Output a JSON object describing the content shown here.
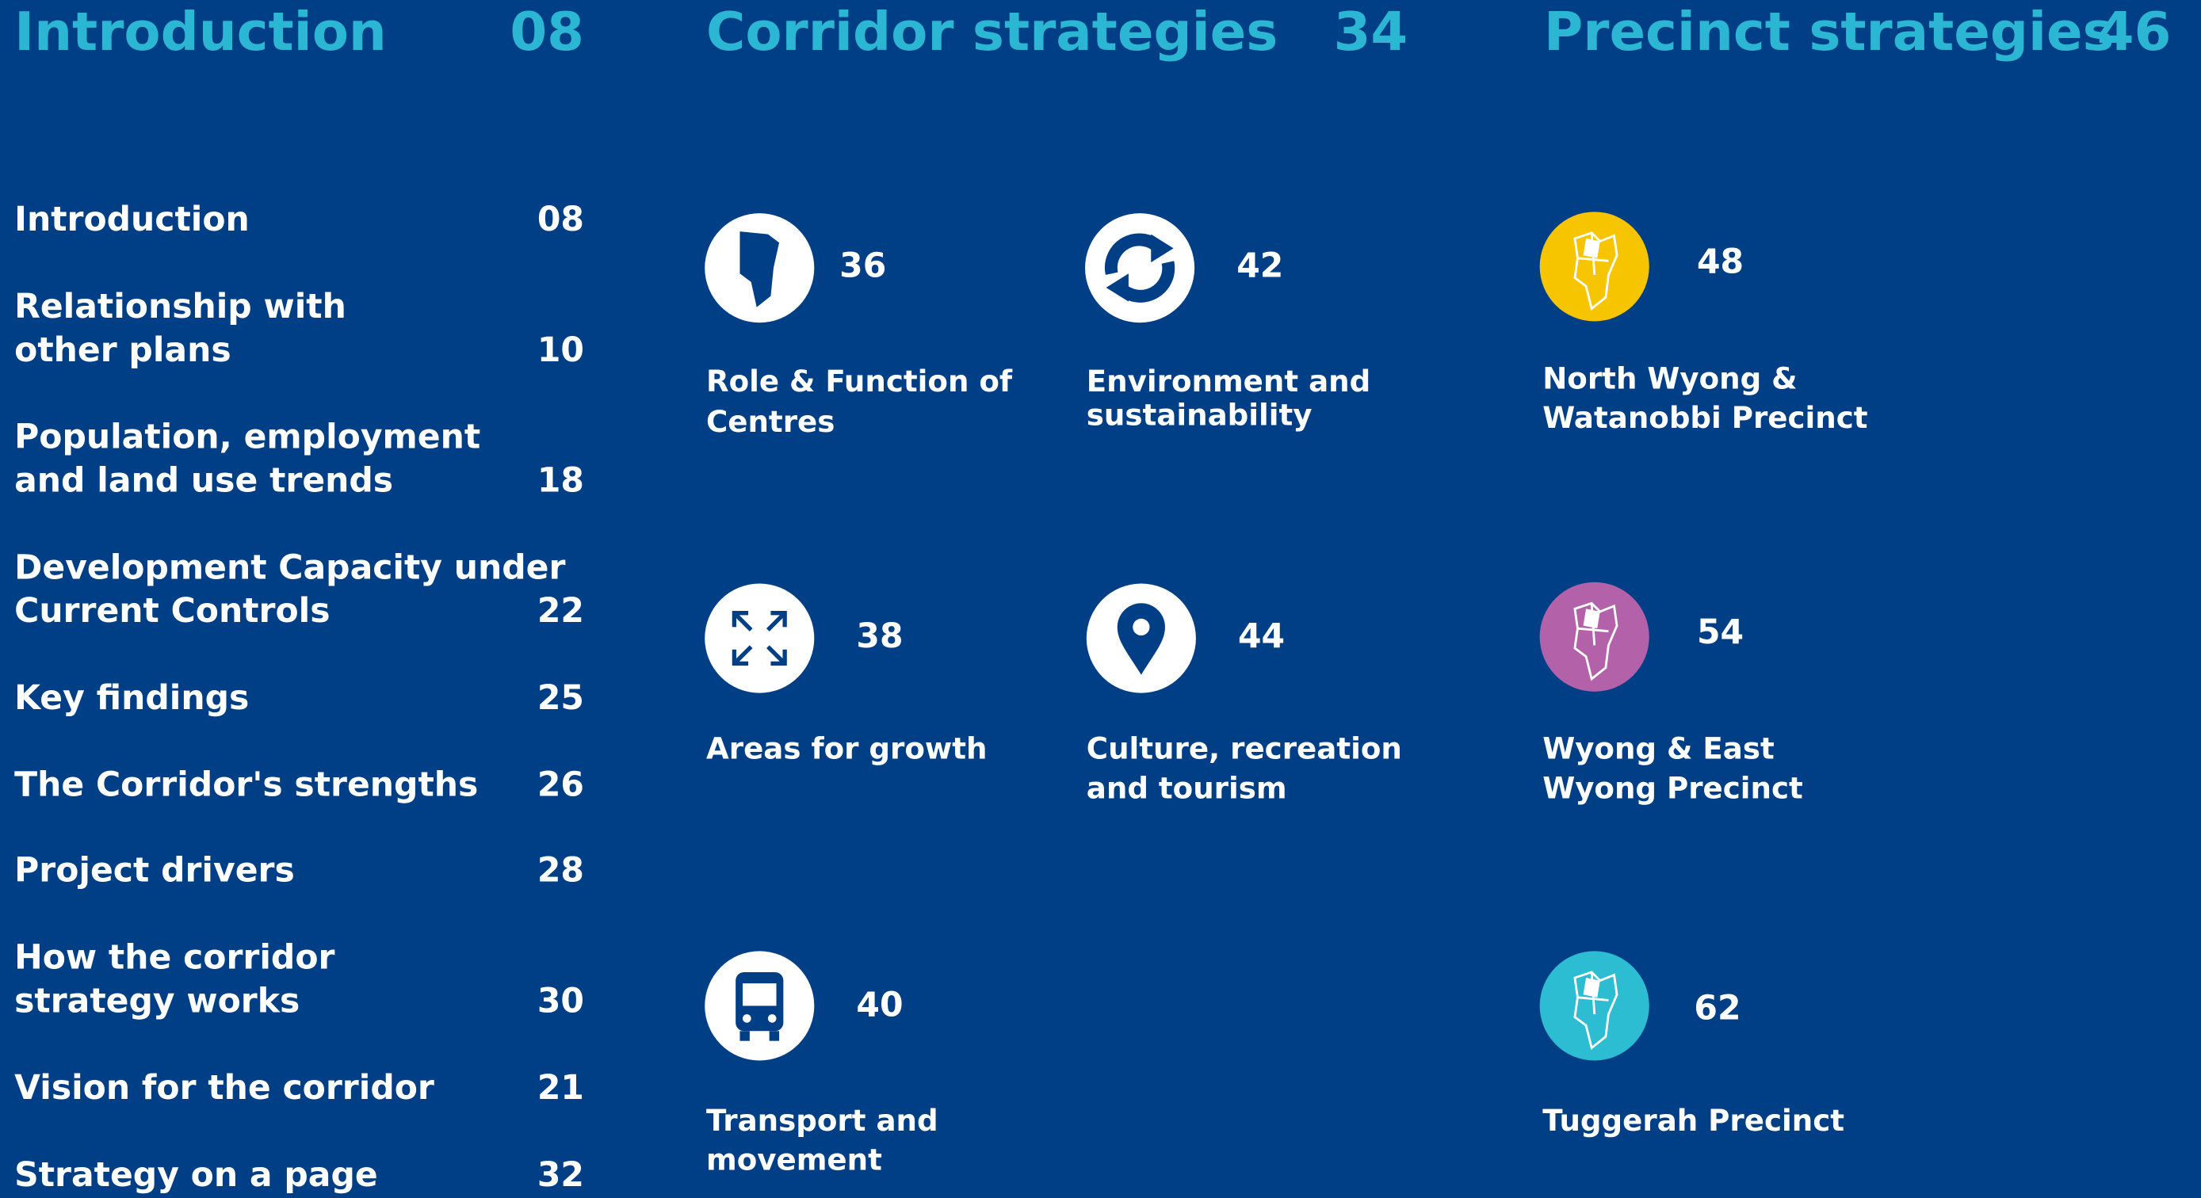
{
  "introduction": {
    "title": "Introduction",
    "page": "08",
    "items": [
      {
        "label": [
          "Introduction"
        ],
        "page": "08"
      },
      {
        "label": [
          "Relationship with",
          "other plans"
        ],
        "page": "10"
      },
      {
        "label": [
          "Population, employment",
          "and land use trends"
        ],
        "page": "18"
      },
      {
        "label": [
          "Development Capacity under",
          "Current Controls"
        ],
        "page": "22"
      },
      {
        "label": [
          "Key findings"
        ],
        "page": "25"
      },
      {
        "label": [
          "The Corridor's strengths"
        ],
        "page": "26"
      },
      {
        "label": [
          "Project drivers"
        ],
        "page": "28"
      },
      {
        "label": [
          "How the corridor",
          "strategy works"
        ],
        "page": "30"
      },
      {
        "label": [
          "Vision for the corridor"
        ],
        "page": "21"
      },
      {
        "label": [
          "Strategy on a page"
        ],
        "page": "32"
      }
    ]
  },
  "corridor": {
    "title": "Corridor strategies",
    "page": "34",
    "items": [
      {
        "page": "36",
        "label": [
          "Role & Function of",
          "Centres"
        ]
      },
      {
        "page": "42",
        "label": [
          "Environment and",
          "sustainability"
        ]
      },
      {
        "page": "38",
        "label": [
          "Areas for growth"
        ]
      },
      {
        "page": "44",
        "label": [
          "Culture, recreation",
          "and tourism"
        ]
      },
      {
        "page": "40",
        "label": [
          "Transport and",
          "movement"
        ]
      }
    ]
  },
  "precinct": {
    "title": "Precinct strategies",
    "page": "46",
    "items": [
      {
        "page": "48",
        "label": [
          "North Wyong &",
          "Watanobbi Precinct"
        ]
      },
      {
        "page": "54",
        "label": [
          "Wyong & East",
          "Wyong Precinct"
        ]
      },
      {
        "page": "62",
        "label": [
          "Tuggerah Precinct"
        ]
      }
    ]
  }
}
